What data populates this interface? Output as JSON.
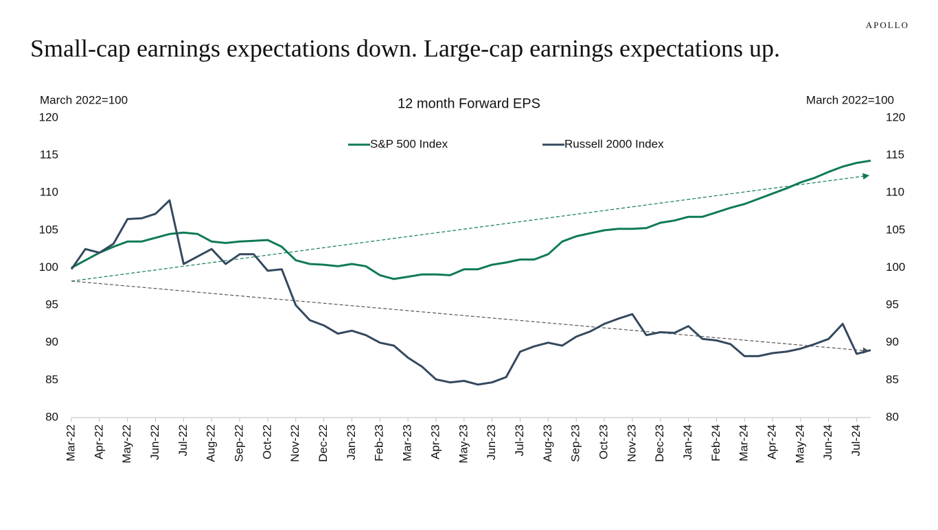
{
  "header": {
    "brand": "APOLLO",
    "headline": "Small-cap earnings expectations down. Large-cap earnings expectations up."
  },
  "chart_data": {
    "type": "line",
    "title": "12 month Forward EPS",
    "y_label": "March 2022=100",
    "y2_label": "March 2022=100",
    "categories": [
      "Mar-22",
      null,
      "Apr-22",
      null,
      "May-22",
      null,
      "Jun-22",
      null,
      "Jul-22",
      null,
      "Aug-22",
      null,
      "Sep-22",
      null,
      "Oct-22",
      null,
      "Nov-22",
      null,
      "Dec-22",
      null,
      "Jan-23",
      null,
      "Feb-23",
      null,
      "Mar-23",
      null,
      "Apr-23",
      null,
      "May-23",
      null,
      "Jun-23",
      null,
      "Jul-23",
      null,
      "Aug-23",
      null,
      "Sep-23",
      null,
      "Oct-23",
      null,
      "Nov-23",
      null,
      "Dec-23",
      null,
      "Jan-24",
      null,
      "Feb-24",
      null,
      "Mar-24",
      null,
      "Apr-24",
      null,
      "May-24",
      null,
      "Jun-24",
      null,
      "Jul-24",
      null
    ],
    "series": [
      {
        "name": "S&P 500 Index",
        "color": "#0e7a55",
        "values": [
          100,
          101,
          102,
          102.8,
          103.5,
          103.5,
          104,
          104.5,
          104.7,
          104.5,
          103.5,
          103.3,
          103.5,
          103.6,
          103.7,
          102.8,
          101,
          100.5,
          100.4,
          100.2,
          100.5,
          100.2,
          99,
          98.5,
          98.8,
          99.1,
          99.1,
          99,
          99.8,
          99.8,
          100.4,
          100.7,
          101.1,
          101.1,
          101.8,
          103.5,
          104.2,
          104.6,
          105,
          105.2,
          105.2,
          105.3,
          106,
          106.3,
          106.8,
          106.8,
          107.4,
          108,
          108.5,
          109.2,
          109.9,
          110.6,
          111.4,
          112,
          112.8,
          113.5,
          114,
          114.3
        ]
      },
      {
        "name": "Russell 2000 Index",
        "color": "#34495e",
        "values": [
          99.8,
          102.5,
          102,
          103.2,
          106.5,
          106.6,
          107.2,
          109,
          100.5,
          101.5,
          102.5,
          100.5,
          101.8,
          101.8,
          99.6,
          99.8,
          95,
          93,
          92.3,
          91.2,
          91.6,
          91,
          90,
          89.6,
          88,
          86.8,
          85.1,
          84.7,
          84.9,
          84.4,
          84.7,
          85.4,
          88.8,
          89.5,
          90,
          89.6,
          90.8,
          91.5,
          92.5,
          93.2,
          93.8,
          91,
          91.4,
          91.3,
          92.2,
          90.5,
          90.3,
          89.8,
          88.2,
          88.2,
          88.6,
          88.8,
          89.2,
          89.8,
          90.5,
          92.5,
          88.5,
          89
        ]
      }
    ],
    "ylim": [
      80,
      120
    ],
    "yticks": [
      80,
      85,
      90,
      95,
      100,
      105,
      110,
      115,
      120
    ],
    "y2lim": [
      80,
      120
    ],
    "y2ticks": [
      80,
      85,
      90,
      95,
      100,
      105,
      110,
      115,
      120
    ]
  }
}
